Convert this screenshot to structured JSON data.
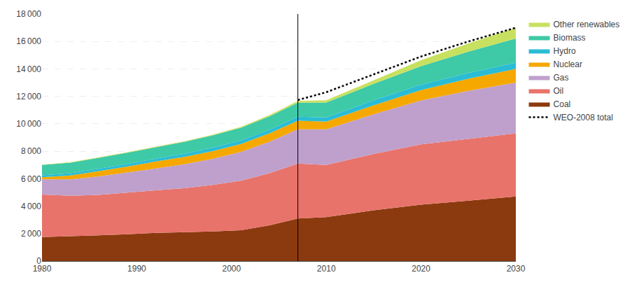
{
  "chart_data": {
    "type": "area",
    "stacked": true,
    "x": [
      1980,
      1983,
      1986,
      1989,
      1992,
      1995,
      1998,
      2001,
      2004,
      2007,
      2010,
      2015,
      2020,
      2025,
      2030
    ],
    "series": [
      {
        "name": "Coal",
        "type": "area",
        "color": "#8B3A0F",
        "values": [
          1750,
          1800,
          1870,
          1950,
          2050,
          2100,
          2150,
          2250,
          2600,
          3100,
          3200,
          3700,
          4100,
          4400,
          4700
        ]
      },
      {
        "name": "Oil",
        "type": "area",
        "color": "#E8736A",
        "values": [
          3100,
          2950,
          2950,
          3050,
          3100,
          3200,
          3400,
          3600,
          3800,
          4000,
          3800,
          4100,
          4400,
          4500,
          4600
        ]
      },
      {
        "name": "Gas",
        "type": "area",
        "color": "#BFA0CC",
        "values": [
          1100,
          1200,
          1350,
          1450,
          1600,
          1750,
          1900,
          2100,
          2300,
          2500,
          2600,
          2900,
          3200,
          3500,
          3700
        ]
      },
      {
        "name": "Nuclear",
        "type": "area",
        "color": "#F5A800",
        "values": [
          150,
          280,
          380,
          430,
          500,
          540,
          560,
          580,
          600,
          620,
          560,
          650,
          750,
          880,
          1000
        ]
      },
      {
        "name": "Hydro",
        "type": "area",
        "color": "#2BBCD4",
        "values": [
          150,
          165,
          180,
          195,
          210,
          230,
          250,
          265,
          280,
          295,
          310,
          360,
          400,
          430,
          460
        ]
      },
      {
        "name": "Biomass",
        "type": "area",
        "color": "#3EC9A7",
        "values": [
          750,
          770,
          790,
          810,
          830,
          860,
          890,
          920,
          960,
          1020,
          1080,
          1200,
          1350,
          1550,
          1750
        ]
      },
      {
        "name": "Other renewables",
        "type": "area",
        "color": "#C8E060",
        "values": [
          30,
          35,
          38,
          40,
          42,
          45,
          50,
          60,
          90,
          130,
          160,
          280,
          430,
          600,
          800
        ]
      },
      {
        "name": "WEO-2008 total",
        "type": "line",
        "line_style": "dotted",
        "color": "#000000",
        "values": [
          null,
          null,
          null,
          null,
          null,
          null,
          null,
          null,
          null,
          11730,
          12300,
          13600,
          14900,
          16000,
          17000
        ]
      }
    ],
    "vlines": [
      2007
    ],
    "xlim": [
      1980,
      2030
    ],
    "xticks": [
      1980,
      1990,
      2000,
      2010,
      2020,
      2030
    ],
    "ylim": [
      0,
      18000
    ],
    "yticks": [
      0,
      {
        "value": 2000,
        "label": "2 000"
      },
      {
        "value": 4000,
        "label": "4 000"
      },
      {
        "value": 6000,
        "label": "6 000"
      },
      {
        "value": 8000,
        "label": "8 000"
      },
      {
        "value": 10000,
        "label": "10 000"
      },
      {
        "value": 12000,
        "label": "12 000"
      },
      {
        "value": 14000,
        "label": "14 000"
      },
      {
        "value": 16000,
        "label": "16 000"
      },
      {
        "value": 18000,
        "label": "18 000"
      }
    ],
    "grid": "y",
    "legend": "right"
  }
}
